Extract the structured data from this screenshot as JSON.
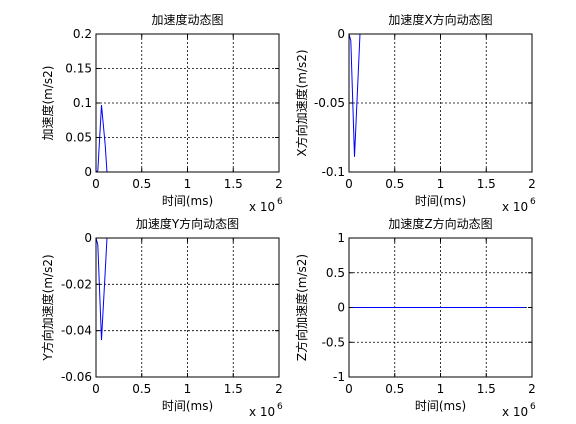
{
  "chart_data": [
    {
      "type": "line",
      "title": "加速度动态图",
      "xlabel": "时间(ms)",
      "ylabel": "加速度(m/s2)",
      "xlim": [
        0,
        2000000
      ],
      "ylim": [
        0,
        0.2
      ],
      "xticks": [
        0,
        500000,
        1000000,
        1500000,
        2000000
      ],
      "xtick_labels": [
        "0",
        "0.5",
        "1",
        "1.5",
        "2"
      ],
      "x_exponent": "x 10",
      "x_exponent_power": "6",
      "yticks": [
        0,
        0.05,
        0.1,
        0.15,
        0.2
      ],
      "ytick_labels": [
        "0",
        "0.05",
        "0.1",
        "0.15",
        "0.2"
      ],
      "grid": true,
      "color": "#0000ff",
      "x": [
        0,
        20000,
        60000,
        100000,
        120000,
        2000000
      ],
      "y": [
        0,
        0.002,
        0.097,
        0.04,
        0,
        0
      ]
    },
    {
      "type": "line",
      "title": "加速度X方向动态图",
      "xlabel": "时间(ms)",
      "ylabel": "X方向加速度(m/s2)",
      "xlim": [
        0,
        2000000
      ],
      "ylim": [
        -0.1,
        0
      ],
      "xticks": [
        0,
        500000,
        1000000,
        1500000,
        2000000
      ],
      "xtick_labels": [
        "0",
        "0.5",
        "1",
        "1.5",
        "2"
      ],
      "x_exponent": "x 10",
      "x_exponent_power": "6",
      "yticks": [
        -0.1,
        -0.05,
        0
      ],
      "ytick_labels": [
        "-0.1",
        "-0.05",
        "0"
      ],
      "grid": true,
      "color": "#0000ff",
      "x": [
        0,
        20000,
        60000,
        100000,
        120000,
        2000000
      ],
      "y": [
        0,
        -0.005,
        -0.089,
        -0.03,
        0,
        0
      ]
    },
    {
      "type": "line",
      "title": "加速度Y方向动态图",
      "xlabel": "时间(ms)",
      "ylabel": "Y方向加速度(m/s2)",
      "xlim": [
        0,
        2000000
      ],
      "ylim": [
        -0.06,
        0
      ],
      "xticks": [
        0,
        500000,
        1000000,
        1500000,
        2000000
      ],
      "xtick_labels": [
        "0",
        "0.5",
        "1",
        "1.5",
        "2"
      ],
      "x_exponent": "x 10",
      "x_exponent_power": "6",
      "yticks": [
        -0.06,
        -0.04,
        -0.02,
        0
      ],
      "ytick_labels": [
        "-0.06",
        "-0.04",
        "-0.02",
        "0"
      ],
      "grid": true,
      "color": "#0000ff",
      "x": [
        0,
        20000,
        60000,
        100000,
        120000,
        2000000
      ],
      "y": [
        0,
        -0.003,
        -0.044,
        -0.015,
        0,
        0
      ]
    },
    {
      "type": "line",
      "title": "加速度Z方向动态图",
      "xlabel": "时间(ms)",
      "ylabel": "Z方向加速度(m/s2)",
      "xlim": [
        0,
        2000000
      ],
      "ylim": [
        -1,
        1
      ],
      "xticks": [
        0,
        500000,
        1000000,
        1500000,
        2000000
      ],
      "xtick_labels": [
        "0",
        "0.5",
        "1",
        "1.5",
        "2"
      ],
      "x_exponent": "x 10",
      "x_exponent_power": "6",
      "yticks": [
        -1,
        -0.5,
        0,
        0.5,
        1
      ],
      "ytick_labels": [
        "-1",
        "-0.5",
        "0",
        "0.5",
        "1"
      ],
      "grid": true,
      "color": "#0000ff",
      "x": [
        0,
        1930000
      ],
      "y": [
        0,
        0
      ]
    }
  ]
}
